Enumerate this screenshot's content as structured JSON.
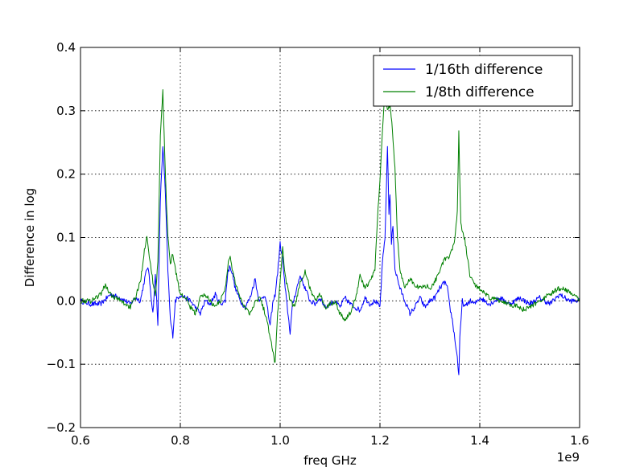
{
  "chart_data": {
    "type": "line",
    "title": "",
    "xlabel": "freq GHz",
    "ylabel": "Difference in log",
    "x_offset_label": "1e9",
    "xlim": [
      0.6,
      1.6
    ],
    "ylim": [
      -0.2,
      0.4
    ],
    "x_ticks": [
      0.6,
      0.8,
      1.0,
      1.2,
      1.4,
      1.6
    ],
    "x_tick_labels": [
      "0.6",
      "0.8",
      "1.0",
      "1.2",
      "1.4",
      "1.6"
    ],
    "y_ticks": [
      -0.2,
      -0.1,
      0.0,
      0.1,
      0.2,
      0.3,
      0.4
    ],
    "y_tick_labels": [
      "−0.2",
      "−0.1",
      "0.0",
      "0.1",
      "0.2",
      "0.3",
      "0.4"
    ],
    "grid": true,
    "legend_position": "top-right",
    "series": [
      {
        "name": "1/16th difference",
        "color": "#0000ff",
        "points": [
          [
            0.6,
            0.0
          ],
          [
            0.62,
            -0.005
          ],
          [
            0.64,
            -0.005
          ],
          [
            0.66,
            0.01
          ],
          [
            0.68,
            0.005
          ],
          [
            0.7,
            -0.005
          ],
          [
            0.71,
            0.005
          ],
          [
            0.72,
            0.0
          ],
          [
            0.73,
            0.04
          ],
          [
            0.735,
            0.055
          ],
          [
            0.74,
            0.02
          ],
          [
            0.745,
            -0.02
          ],
          [
            0.75,
            0.04
          ],
          [
            0.755,
            -0.035
          ],
          [
            0.76,
            0.16
          ],
          [
            0.765,
            0.245
          ],
          [
            0.77,
            0.17
          ],
          [
            0.775,
            0.05
          ],
          [
            0.78,
            -0.03
          ],
          [
            0.785,
            -0.055
          ],
          [
            0.79,
            0.0
          ],
          [
            0.8,
            0.01
          ],
          [
            0.81,
            0.005
          ],
          [
            0.82,
            0.0
          ],
          [
            0.83,
            -0.01
          ],
          [
            0.84,
            -0.02
          ],
          [
            0.85,
            0.0
          ],
          [
            0.86,
            -0.005
          ],
          [
            0.87,
            0.01
          ],
          [
            0.88,
            -0.005
          ],
          [
            0.89,
            0.0
          ],
          [
            0.895,
            0.045
          ],
          [
            0.9,
            0.055
          ],
          [
            0.905,
            0.04
          ],
          [
            0.91,
            0.02
          ],
          [
            0.92,
            0.0
          ],
          [
            0.93,
            -0.01
          ],
          [
            0.94,
            0.005
          ],
          [
            0.95,
            0.035
          ],
          [
            0.955,
            0.01
          ],
          [
            0.96,
            0.0
          ],
          [
            0.97,
            0.01
          ],
          [
            0.98,
            -0.04
          ],
          [
            0.985,
            -0.005
          ],
          [
            0.99,
            0.01
          ],
          [
            0.995,
            0.045
          ],
          [
            1.0,
            0.09
          ],
          [
            1.005,
            0.065
          ],
          [
            1.01,
            0.02
          ],
          [
            1.015,
            -0.015
          ],
          [
            1.02,
            -0.05
          ],
          [
            1.025,
            -0.005
          ],
          [
            1.03,
            0.01
          ],
          [
            1.04,
            0.04
          ],
          [
            1.05,
            0.02
          ],
          [
            1.06,
            0.0
          ],
          [
            1.07,
            -0.005
          ],
          [
            1.08,
            0.005
          ],
          [
            1.09,
            -0.01
          ],
          [
            1.1,
            -0.005
          ],
          [
            1.11,
            0.0
          ],
          [
            1.12,
            -0.01
          ],
          [
            1.13,
            0.005
          ],
          [
            1.14,
            -0.005
          ],
          [
            1.15,
            -0.01
          ],
          [
            1.16,
            -0.015
          ],
          [
            1.17,
            0.005
          ],
          [
            1.18,
            -0.005
          ],
          [
            1.19,
            0.0
          ],
          [
            1.2,
            -0.01
          ],
          [
            1.205,
            0.06
          ],
          [
            1.21,
            0.1
          ],
          [
            1.212,
            0.15
          ],
          [
            1.215,
            0.245
          ],
          [
            1.218,
            0.14
          ],
          [
            1.22,
            0.17
          ],
          [
            1.223,
            0.09
          ],
          [
            1.226,
            0.12
          ],
          [
            1.23,
            0.05
          ],
          [
            1.24,
            0.02
          ],
          [
            1.25,
            0.0
          ],
          [
            1.26,
            -0.02
          ],
          [
            1.27,
            -0.01
          ],
          [
            1.28,
            0.005
          ],
          [
            1.29,
            -0.01
          ],
          [
            1.3,
            0.0
          ],
          [
            1.31,
            0.005
          ],
          [
            1.32,
            0.02
          ],
          [
            1.33,
            0.03
          ],
          [
            1.335,
            0.02
          ],
          [
            1.34,
            -0.01
          ],
          [
            1.345,
            -0.03
          ],
          [
            1.35,
            -0.06
          ],
          [
            1.355,
            -0.09
          ],
          [
            1.358,
            -0.118
          ],
          [
            1.36,
            -0.06
          ],
          [
            1.365,
            0.0
          ],
          [
            1.37,
            -0.01
          ],
          [
            1.38,
            0.0
          ],
          [
            1.39,
            -0.005
          ],
          [
            1.4,
            0.005
          ],
          [
            1.42,
            -0.005
          ],
          [
            1.44,
            0.005
          ],
          [
            1.46,
            -0.005
          ],
          [
            1.48,
            0.005
          ],
          [
            1.5,
            -0.005
          ],
          [
            1.52,
            0.005
          ],
          [
            1.54,
            -0.005
          ],
          [
            1.56,
            0.01
          ],
          [
            1.58,
            0.0
          ],
          [
            1.6,
            0.0
          ]
        ]
      },
      {
        "name": "1/8th difference",
        "color": "#008000",
        "points": [
          [
            0.6,
            0.0
          ],
          [
            0.62,
            0.0
          ],
          [
            0.64,
            0.01
          ],
          [
            0.65,
            0.025
          ],
          [
            0.66,
            0.01
          ],
          [
            0.68,
            0.0
          ],
          [
            0.7,
            -0.01
          ],
          [
            0.71,
            0.005
          ],
          [
            0.72,
            0.03
          ],
          [
            0.728,
            0.08
          ],
          [
            0.733,
            0.105
          ],
          [
            0.738,
            0.07
          ],
          [
            0.745,
            0.03
          ],
          [
            0.75,
            0.01
          ],
          [
            0.755,
            0.06
          ],
          [
            0.76,
            0.26
          ],
          [
            0.765,
            0.33
          ],
          [
            0.77,
            0.2
          ],
          [
            0.775,
            0.1
          ],
          [
            0.78,
            0.06
          ],
          [
            0.785,
            0.075
          ],
          [
            0.79,
            0.05
          ],
          [
            0.8,
            0.01
          ],
          [
            0.81,
            0.005
          ],
          [
            0.82,
            -0.01
          ],
          [
            0.83,
            -0.02
          ],
          [
            0.84,
            0.005
          ],
          [
            0.85,
            0.01
          ],
          [
            0.86,
            0.0
          ],
          [
            0.87,
            -0.01
          ],
          [
            0.88,
            0.0
          ],
          [
            0.89,
            0.02
          ],
          [
            0.895,
            0.055
          ],
          [
            0.9,
            0.07
          ],
          [
            0.905,
            0.045
          ],
          [
            0.91,
            0.03
          ],
          [
            0.92,
            0.005
          ],
          [
            0.93,
            -0.01
          ],
          [
            0.94,
            -0.02
          ],
          [
            0.95,
            0.0
          ],
          [
            0.96,
            0.005
          ],
          [
            0.97,
            -0.02
          ],
          [
            0.98,
            -0.055
          ],
          [
            0.985,
            -0.08
          ],
          [
            0.99,
            -0.098
          ],
          [
            0.995,
            -0.02
          ],
          [
            1.0,
            0.03
          ],
          [
            1.005,
            0.085
          ],
          [
            1.01,
            0.04
          ],
          [
            1.02,
            0.0
          ],
          [
            1.03,
            -0.01
          ],
          [
            1.04,
            0.03
          ],
          [
            1.05,
            0.045
          ],
          [
            1.06,
            0.02
          ],
          [
            1.07,
            0.0
          ],
          [
            1.08,
            0.01
          ],
          [
            1.09,
            -0.01
          ],
          [
            1.1,
            -0.005
          ],
          [
            1.11,
            0.0
          ],
          [
            1.12,
            -0.02
          ],
          [
            1.13,
            -0.03
          ],
          [
            1.14,
            -0.02
          ],
          [
            1.15,
            0.0
          ],
          [
            1.16,
            0.04
          ],
          [
            1.17,
            0.02
          ],
          [
            1.18,
            0.03
          ],
          [
            1.19,
            0.05
          ],
          [
            1.195,
            0.13
          ],
          [
            1.2,
            0.19
          ],
          [
            1.205,
            0.27
          ],
          [
            1.21,
            0.33
          ],
          [
            1.215,
            0.3
          ],
          [
            1.22,
            0.31
          ],
          [
            1.225,
            0.27
          ],
          [
            1.23,
            0.21
          ],
          [
            1.235,
            0.1
          ],
          [
            1.24,
            0.05
          ],
          [
            1.25,
            0.02
          ],
          [
            1.26,
            0.035
          ],
          [
            1.27,
            0.025
          ],
          [
            1.28,
            0.02
          ],
          [
            1.29,
            0.025
          ],
          [
            1.3,
            0.02
          ],
          [
            1.31,
            0.03
          ],
          [
            1.32,
            0.05
          ],
          [
            1.33,
            0.065
          ],
          [
            1.34,
            0.07
          ],
          [
            1.345,
            0.08
          ],
          [
            1.35,
            0.1
          ],
          [
            1.355,
            0.14
          ],
          [
            1.358,
            0.268
          ],
          [
            1.362,
            0.12
          ],
          [
            1.37,
            0.095
          ],
          [
            1.375,
            0.07
          ],
          [
            1.38,
            0.04
          ],
          [
            1.39,
            0.025
          ],
          [
            1.4,
            0.02
          ],
          [
            1.41,
            0.01
          ],
          [
            1.42,
            0.005
          ],
          [
            1.44,
            0.0
          ],
          [
            1.46,
            -0.005
          ],
          [
            1.48,
            -0.01
          ],
          [
            1.49,
            -0.015
          ],
          [
            1.5,
            -0.01
          ],
          [
            1.52,
            0.0
          ],
          [
            1.54,
            0.01
          ],
          [
            1.56,
            0.02
          ],
          [
            1.58,
            0.015
          ],
          [
            1.6,
            0.0
          ]
        ]
      }
    ]
  }
}
